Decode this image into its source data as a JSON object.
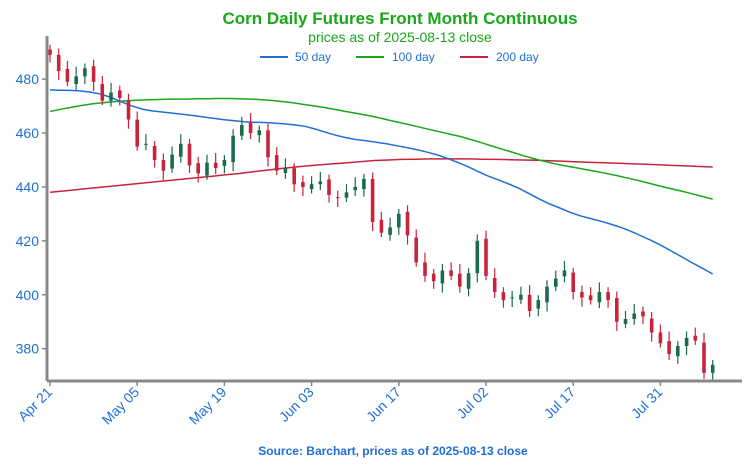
{
  "colors": {
    "title": "#1aa71a",
    "subtitle": "#1aa71a",
    "tick_label": "#1f6fd6",
    "legend_text": "#1f6fd6",
    "source": "#1f6fd6",
    "axis": "#888888",
    "up_candle": "#1a6b4a",
    "down_candle": "#c8233a",
    "ma50": "#1f6fd6",
    "ma100": "#1aa71a",
    "ma200": "#c8233a"
  },
  "chart_data": {
    "type": "candlestick",
    "title": "Corn Daily Futures Front Month Continuous",
    "subtitle": "prices as of 2025-08-13 close",
    "source": "Source: Barchart, prices as of 2025-08-13 close",
    "ylim": [
      368,
      496
    ],
    "yticks": [
      380,
      400,
      420,
      440,
      460,
      480
    ],
    "xticks": [
      {
        "index": 0,
        "label": "Apr 21"
      },
      {
        "index": 10,
        "label": "May 05"
      },
      {
        "index": 20,
        "label": "May 19"
      },
      {
        "index": 30,
        "label": "Jun 03"
      },
      {
        "index": 40,
        "label": "Jun 17"
      },
      {
        "index": 50,
        "label": "Jul 02"
      },
      {
        "index": 60,
        "label": "Jul 17"
      },
      {
        "index": 70,
        "label": "Jul 31"
      }
    ],
    "legend": [
      "50 day",
      "100 day",
      "200 day"
    ],
    "closes": [
      489,
      483,
      479,
      481,
      484,
      479,
      472,
      475,
      473,
      465,
      455,
      456,
      450,
      446,
      452,
      456,
      448,
      445,
      449,
      447,
      450,
      459,
      463,
      460,
      461,
      451,
      446,
      447,
      441,
      440,
      441,
      442,
      437,
      436,
      438,
      440,
      443,
      427,
      423,
      425,
      430,
      422,
      412,
      407,
      405,
      409,
      407,
      403,
      408,
      420,
      407,
      401,
      398,
      399,
      400,
      394,
      398,
      403,
      406,
      409,
      401,
      399,
      398,
      401,
      398,
      390,
      391,
      393,
      392,
      386,
      382,
      378,
      381,
      384,
      383,
      371,
      374
    ],
    "ma50": [
      476,
      475.9,
      475.8,
      475.6,
      475.2,
      474.4,
      473.2,
      471.6,
      470.1,
      468.9,
      468.2,
      467.8,
      467.4,
      467,
      466.5,
      466,
      465.5,
      465,
      464.6,
      464.2,
      464,
      463.9,
      463.7,
      463.4,
      463,
      462.5,
      461.5,
      460.3,
      459.2,
      458.3,
      457.6,
      457.1,
      456.6,
      456,
      455.3,
      454.6,
      453.8,
      452.9,
      451.9,
      450.6,
      449.1,
      447.5,
      445.7,
      444,
      442.6,
      441.1,
      439.5,
      437.5,
      435.5,
      433.7,
      432.2,
      430.6,
      429.3,
      428.3,
      427.3,
      426.2,
      425,
      423.5,
      421.8,
      420.1,
      418.2,
      416.1,
      414,
      411.8,
      409.8,
      407.7
    ],
    "ma100": [
      468,
      468.8,
      469.5,
      470.2,
      470.8,
      471.2,
      471.6,
      471.9,
      472.1,
      472.3,
      472.4,
      472.5,
      472.6,
      472.6,
      472.7,
      472.7,
      472.8,
      472.8,
      472.7,
      472.6,
      472.4,
      472.1,
      471.7,
      471.3,
      470.7,
      470.1,
      469.5,
      468.8,
      468.1,
      467.4,
      466.7,
      465.9,
      465,
      464.1,
      463.2,
      462.3,
      461.4,
      460.5,
      459.6,
      458.7,
      457.6,
      456.4,
      455.2,
      454,
      452.8,
      451.6,
      450.5,
      449.5,
      448.6,
      447.8,
      447.1,
      446.4,
      445.7,
      444.9,
      444.1,
      443.2,
      442.3,
      441.3,
      440.3,
      439.4,
      438.5,
      437.5,
      436.5,
      435.5
    ],
    "ma200": [
      438,
      438.5,
      439,
      439.5,
      440,
      440.5,
      441,
      441.5,
      442,
      442.5,
      443,
      443.5,
      444,
      444.5,
      445,
      445.6,
      446.2,
      446.8,
      447.3,
      447.8,
      448.2,
      448.6,
      449,
      449.4,
      449.8,
      450,
      450.2,
      450.3,
      450.4,
      450.4,
      450.4,
      450.4,
      450.3,
      450.2,
      450.1,
      450,
      449.9,
      449.7,
      449.5,
      449.3,
      449.1,
      449,
      448.8,
      448.6,
      448.4,
      448.2,
      448,
      447.8,
      447.6,
      447.4
    ]
  }
}
